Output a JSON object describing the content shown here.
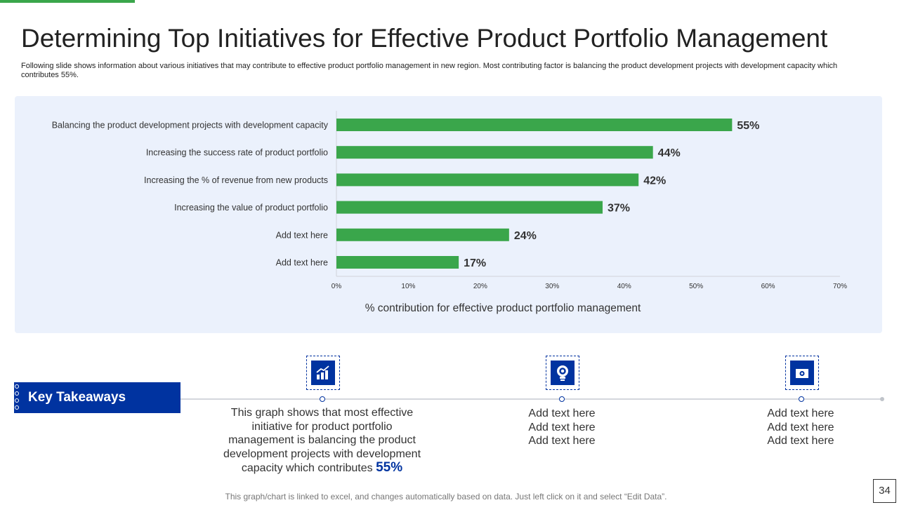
{
  "title": "Determining Top Initiatives for Effective Product Portfolio Management",
  "subtitle": "Following slide shows information about various initiatives that may contribute to  effective product portfolio management in new region. Most contributing factor is balancing the product development projects with development capacity which contributes 55%.",
  "chart_data": {
    "type": "bar",
    "orientation": "horizontal",
    "categories": [
      "Balancing the product development projects with development capacity",
      "Increasing the success rate of product portfolio",
      "Increasing the % of revenue from new products",
      "Increasing the value of product portfolio",
      "Add text here",
      "Add text here"
    ],
    "values": [
      55,
      44,
      42,
      37,
      24,
      17
    ],
    "data_labels": [
      "55%",
      "44%",
      "42%",
      "37%",
      "24%",
      "17%"
    ],
    "xlim": [
      0,
      70
    ],
    "xticks": [
      "0%",
      "10%",
      "20%",
      "30%",
      "40%",
      "50%",
      "60%",
      "70%"
    ],
    "xlabel": "% contribution for effective product portfolio management",
    "ylabel": "",
    "grid": false,
    "bar_color": "#3aa64b"
  },
  "takeaways": {
    "label": "Key Takeaways",
    "item1": {
      "icon": "chart-growth-icon",
      "line1": "This graph shows that most effective",
      "line2": "initiative for product portfolio",
      "line3": "management is balancing the product",
      "line4": "development projects with development",
      "line5": "capacity which contributes",
      "highlight": "55%"
    },
    "item2": {
      "icon": "lightbulb-gear-icon",
      "lines": [
        "Add text here",
        "Add text here",
        "Add text here"
      ]
    },
    "item3": {
      "icon": "camera-icon",
      "lines": [
        "Add text here",
        "Add text here",
        "Add text here"
      ]
    }
  },
  "footer": "This graph/chart is linked to excel, and changes automatically based on data. Just left click on it and select “Edit Data”.",
  "page_number": "34",
  "colors": {
    "accent_blue": "#0033a0",
    "accent_green": "#3aa64b"
  }
}
